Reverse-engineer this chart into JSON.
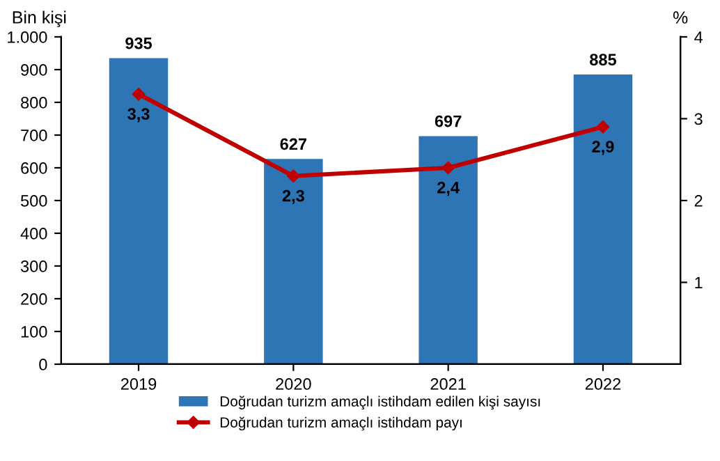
{
  "chart_data": {
    "type": "bar",
    "ylabel": "Bin kişi",
    "y2label": "%",
    "categories": [
      "2019",
      "2020",
      "2021",
      "2022"
    ],
    "series": [
      {
        "name": "Doğrudan turizm amaçlı istihdam edilen kişi sayısı",
        "color": "#2e75b6",
        "values": [
          935,
          627,
          697,
          885
        ]
      },
      {
        "name": "Doğrudan turizm amaçlı istihdam payı",
        "type": "line",
        "axis": "y2",
        "color": "#c00000",
        "values": [
          3.3,
          2.3,
          2.4,
          2.9
        ],
        "value_labels": [
          "3,3",
          "2,3",
          "2,4",
          "2,9"
        ],
        "marker": "diamond"
      }
    ],
    "ylim": [
      0,
      1000
    ],
    "yticks": [
      0,
      100,
      200,
      300,
      400,
      500,
      600,
      700,
      800,
      900,
      {
        "value": 1000,
        "label": "1.000"
      }
    ],
    "y2lim": [
      0,
      4
    ],
    "y2ticks": [
      1,
      2,
      3,
      4
    ],
    "data_labels": true,
    "grid": false,
    "legend": "bottom"
  }
}
